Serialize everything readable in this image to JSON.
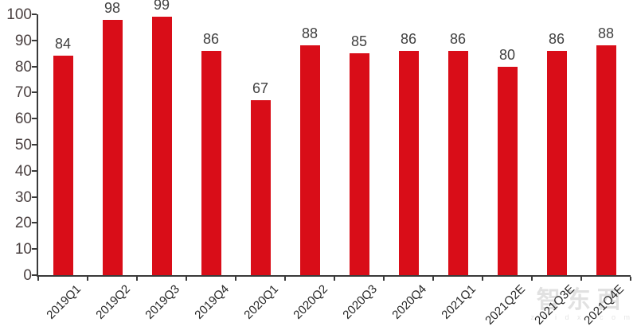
{
  "chart_data": {
    "type": "bar",
    "title": "",
    "xlabel": "",
    "ylabel": "",
    "categories": [
      "2019Q1",
      "2019Q2",
      "2019Q3",
      "2019Q4",
      "2020Q1",
      "2020Q2",
      "2020Q3",
      "2020Q4",
      "2021Q1",
      "2021Q2E",
      "2021Q3E",
      "2021Q4E"
    ],
    "values": [
      84,
      98,
      99,
      86,
      67,
      88,
      85,
      86,
      86,
      80,
      86,
      88
    ],
    "ylim": [
      0,
      100
    ],
    "yticks": [
      0,
      10,
      20,
      30,
      40,
      50,
      60,
      70,
      80,
      90,
      100
    ],
    "grid": false,
    "legend": "none",
    "data_labels": true,
    "colors": {
      "bar": "#D90D18",
      "value_label": "#404040",
      "y_axis_label": "#4a4040",
      "x_axis_label": "#262626",
      "axis_line": "#3a3a3a",
      "background": "#FFFFFF"
    }
  },
  "watermark": {
    "logo_text": "智东西",
    "sub_text": "z h i d x . c o m"
  }
}
